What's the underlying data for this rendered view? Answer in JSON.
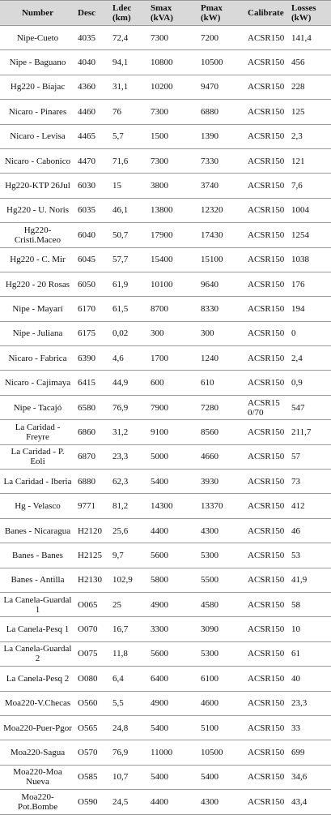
{
  "table": {
    "header": [
      "Number",
      "Desc",
      "Ldec (km)",
      "Smax (kVA)",
      "Pmax (kW)",
      "Calibrate",
      "Losses (kW)"
    ],
    "rows": [
      [
        "Nipe-Cueto",
        "4035",
        "72,4",
        "7300",
        "7200",
        "ACSR150",
        "141,4"
      ],
      [
        "Nipe - Baguano",
        "4040",
        "94,1",
        "10800",
        "10500",
        "ACSR150",
        "456"
      ],
      [
        "Hg220 - Biajac",
        "4360",
        "31,1",
        "10200",
        "9470",
        "ACSR150",
        "228"
      ],
      [
        "Nicaro - Pinares",
        "4460",
        "76",
        "7300",
        "6880",
        "ACSR150",
        "125"
      ],
      [
        "Nicaro - Levisa",
        "4465",
        "5,7",
        "1500",
        "1390",
        "ACSR150",
        "2,3"
      ],
      [
        "Nicaro - Cabonico",
        "4470",
        "71,6",
        "7300",
        "7330",
        "ACSR150",
        "121"
      ],
      [
        "Hg220-KTP 26Jul",
        "6030",
        "15",
        "3800",
        "3740",
        "ACSR150",
        "7,6"
      ],
      [
        "Hg220 - U. Noris",
        "6035",
        "46,1",
        "13800",
        "12320",
        "ACSR150",
        "1004"
      ],
      [
        "Hg220-Cristi.Maceo",
        "6040",
        "50,7",
        "17900",
        "17430",
        "ACSR150",
        "1254"
      ],
      [
        "Hg220 - C. Mir",
        "6045",
        "57,7",
        "15400",
        "15100",
        "ACSR150",
        "1038"
      ],
      [
        "Hg220 - 20 Rosas",
        "6050",
        "61,9",
        "10100",
        "9640",
        "ACSR150",
        "176"
      ],
      [
        "Nipe - Mayarí",
        "6170",
        "61,5",
        "8700",
        "8330",
        "ACSR150",
        "194"
      ],
      [
        "Nipe - Juliana",
        "6175",
        "0,02",
        "300",
        "300",
        "ACSR150",
        "0"
      ],
      [
        "Nicaro - Fabrica",
        "6390",
        "4,6",
        "1700",
        "1240",
        "ACSR150",
        "2,4"
      ],
      [
        "Nicaro - Cajimaya",
        "6415",
        "44,9",
        "600",
        "610",
        "ACSR150",
        "0,9"
      ],
      [
        "Nipe - Tacajó",
        "6580",
        "76,9",
        "7900",
        "7280",
        "ACSR150/70",
        "547"
      ],
      [
        "La Caridad - Freyre",
        "6860",
        "31,2",
        "9100",
        "8560",
        "ACSR150",
        "211,7"
      ],
      [
        "La Caridad - P. Eoli",
        "6870",
        "23,3",
        "5000",
        "4660",
        "ACSR150",
        "57"
      ],
      [
        "La Caridad - Iberia",
        "6880",
        "62,3",
        "5400",
        "3930",
        "ACSR150",
        "73"
      ],
      [
        "Hg - Velasco",
        "9771",
        "81,2",
        "14300",
        "13370",
        "ACSR150",
        "412"
      ],
      [
        "Banes - Nicaragua",
        "H2120",
        "25,6",
        "4400",
        "4300",
        "ACSR150",
        "46"
      ],
      [
        "Banes - Banes",
        "H2125",
        "9,7",
        "5600",
        "5300",
        "ACSR150",
        "53"
      ],
      [
        "Banes - Antilla",
        "H2130",
        "102,9",
        "5800",
        "5500",
        "ACSR150",
        "41,9"
      ],
      [
        "La Canela-Guardal 1",
        "O065",
        "25",
        "4900",
        "4580",
        "ACSR150",
        "58"
      ],
      [
        "La Canela-Pesq 1",
        "O070",
        "16,7",
        "3300",
        "3090",
        "ACSR150",
        "10"
      ],
      [
        "La Canela-Guardal 2",
        "O075",
        "11,8",
        "5600",
        "5300",
        "ACSR150",
        "61"
      ],
      [
        "La Canela-Pesq 2",
        "O080",
        "6,4",
        "6400",
        "6100",
        "ACSR150",
        "40"
      ],
      [
        "Moa220-V.Checas",
        "O560",
        "5,5",
        "4900",
        "4600",
        "ACSR150",
        "23,3"
      ],
      [
        "Moa220-Puer-Pgor",
        "O565",
        "24,8",
        "5400",
        "5100",
        "ACSR150",
        "33"
      ],
      [
        "Moa220-Sagua",
        "O570",
        "76,9",
        "11000",
        "10500",
        "ACSR150",
        "699"
      ],
      [
        "Moa220-Moa Nueva",
        "O585",
        "10,7",
        "5400",
        "5400",
        "ACSR150",
        "34,6"
      ],
      [
        "Moa220-Pot.Bombe",
        "O590",
        "24,5",
        "4400",
        "4300",
        "ACSR150",
        "43,4"
      ]
    ]
  }
}
